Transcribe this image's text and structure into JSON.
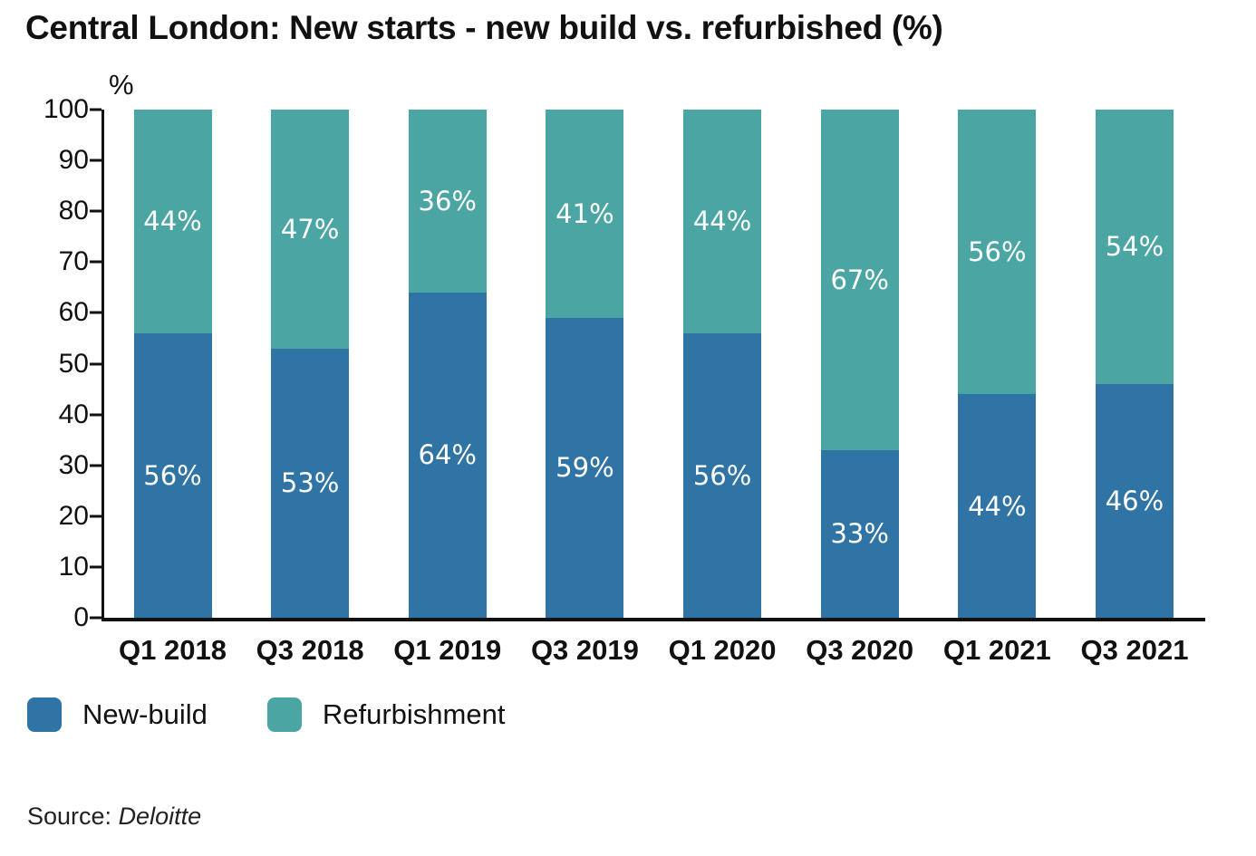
{
  "header": {
    "title": "Central London: New starts - new build vs. refurbished (%)"
  },
  "colors": {
    "new_build": "#3074a6",
    "refurbishment": "#4ba6a3",
    "axis": "#111111",
    "label_text": "#ffffff",
    "background": "#ffffff"
  },
  "source": {
    "prefix": "Source: ",
    "name": "Deloitte"
  },
  "chart_data": {
    "type": "bar",
    "stacked": true,
    "title": "Central London: New starts - new build vs. refurbished (%)",
    "ylabel": "%",
    "ylim": [
      0,
      100
    ],
    "y_ticks": [
      0,
      10,
      20,
      30,
      40,
      50,
      60,
      70,
      80,
      90,
      100
    ],
    "grid": false,
    "legend_position": "bottom-left",
    "value_label_suffix": "%",
    "categories": [
      "Q1 2018",
      "Q3 2018",
      "Q1 2019",
      "Q3 2019",
      "Q1 2020",
      "Q3 2020",
      "Q1 2021",
      "Q3 2021"
    ],
    "series": [
      {
        "name": "New-build",
        "color": "#3074a6",
        "values": [
          56,
          53,
          64,
          59,
          56,
          33,
          44,
          46
        ]
      },
      {
        "name": "Refurbishment",
        "color": "#4ba6a3",
        "values": [
          44,
          47,
          36,
          41,
          44,
          67,
          56,
          54
        ]
      }
    ]
  }
}
